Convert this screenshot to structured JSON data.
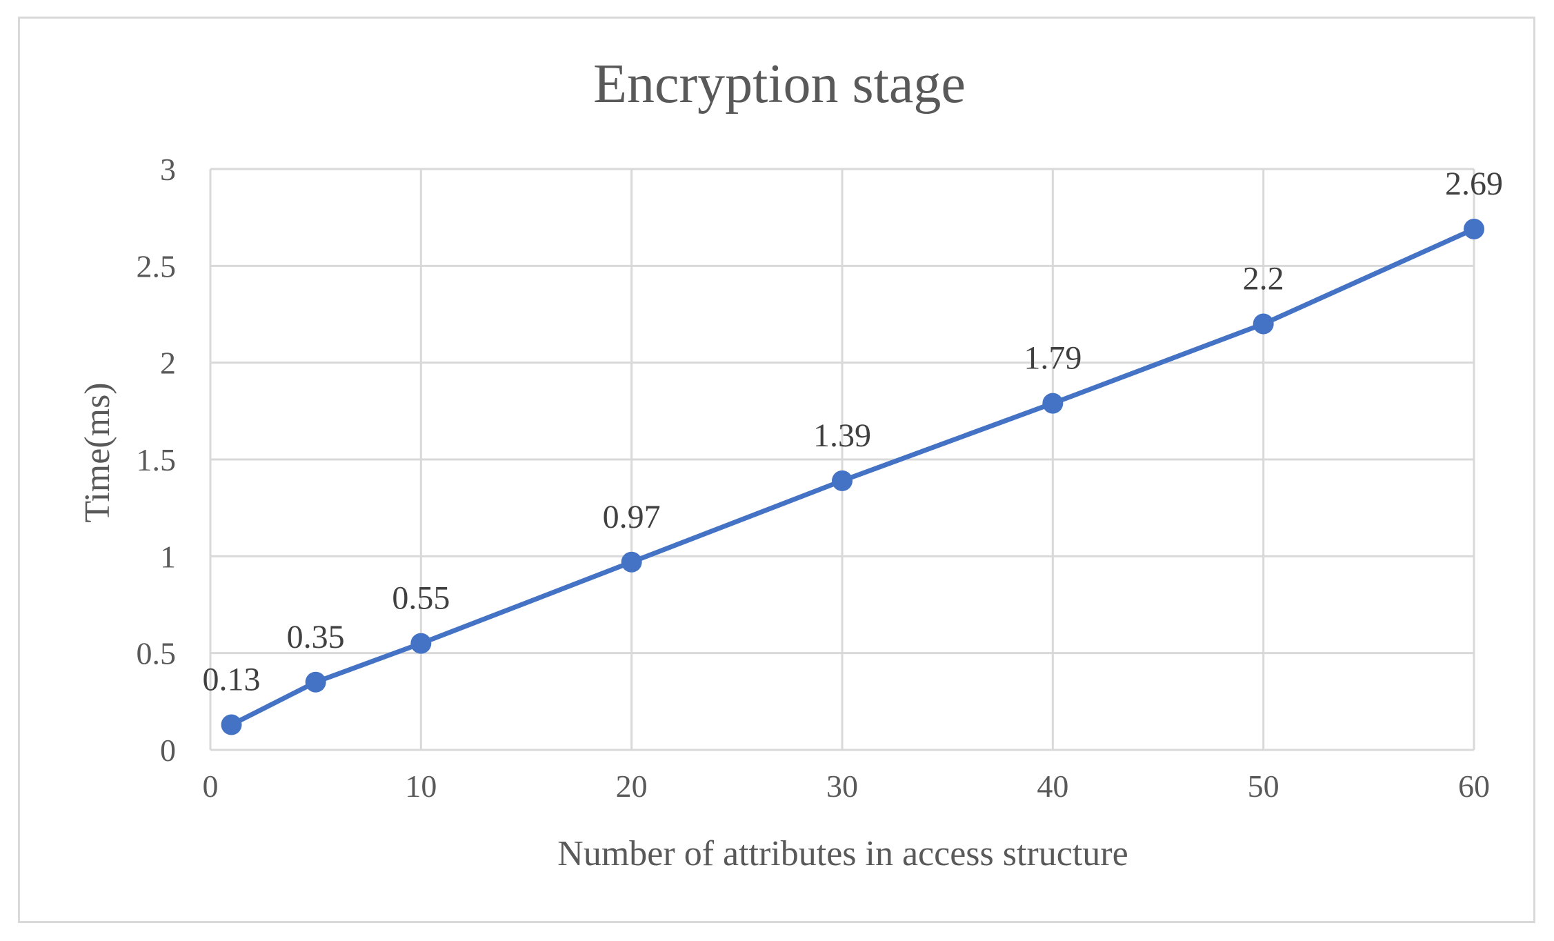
{
  "chart_data": {
    "type": "line",
    "title": "Encryption stage",
    "xlabel": "Number of attributes in access structure",
    "ylabel": "Time(ms)",
    "xlim": [
      0,
      60
    ],
    "ylim": [
      0,
      3
    ],
    "x_ticks": [
      "0",
      "10",
      "20",
      "30",
      "40",
      "50",
      "60"
    ],
    "y_ticks": [
      "0",
      "0.5",
      "1",
      "1.5",
      "2",
      "2.5",
      "3"
    ],
    "grid": true,
    "legend": "none",
    "series": [
      {
        "color": "#4472c4",
        "points": [
          {
            "x": 1,
            "y": 0.13,
            "label": "0.13"
          },
          {
            "x": 5,
            "y": 0.35,
            "label": "0.35"
          },
          {
            "x": 10,
            "y": 0.55,
            "label": "0.55"
          },
          {
            "x": 20,
            "y": 0.97,
            "label": "0.97"
          },
          {
            "x": 30,
            "y": 1.39,
            "label": "1.39"
          },
          {
            "x": 40,
            "y": 1.79,
            "label": "1.79"
          },
          {
            "x": 50,
            "y": 2.2,
            "label": "2.2"
          },
          {
            "x": 60,
            "y": 2.69,
            "label": "2.69"
          }
        ]
      }
    ]
  },
  "colors": {
    "gridline": "#d9d9d9",
    "text": "#595959",
    "series": "#4472c4"
  }
}
